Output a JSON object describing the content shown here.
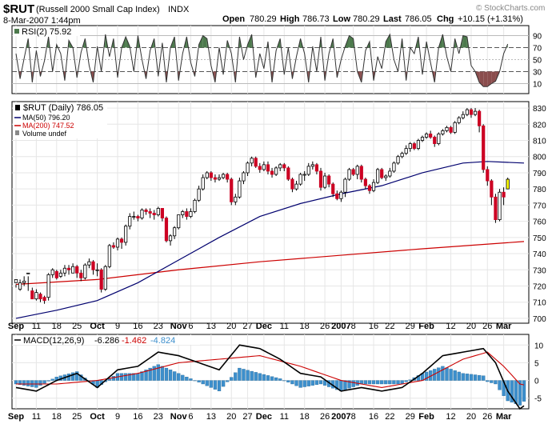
{
  "header": {
    "symbol": "$RUT",
    "name": "(Russell 2000 Small Cap Index)",
    "exchange": "INDX",
    "datetime": "8-Mar-2007 1:44pm",
    "open_label": "Open",
    "open": "780.29",
    "high_label": "High",
    "high": "786.73",
    "low_label": "Low",
    "low": "780.29",
    "last_label": "Last",
    "last": "786.05",
    "chg_label": "Chg",
    "chg": "+10.15 (+1.31%)",
    "copyright": "© StockCharts.com"
  },
  "colors": {
    "up": "#000000",
    "down": "#cc0022",
    "last": "#ffff00",
    "ma50": "#00006e",
    "ma200": "#cc0000",
    "rsi_over": "#4d7a4d",
    "rsi_under": "#8a4d4d",
    "macd": "#000000",
    "signal": "#cc0000",
    "hist": "#3d8fcc"
  },
  "legend": {
    "price": "$RUT (Daily) 786.05",
    "ma50": "MA(50) 796.20",
    "ma200": "MA(200) 747.52",
    "volume": "Volume undef"
  },
  "rsi": {
    "label": "RSI(2) 75.92",
    "ticks": [
      90,
      70,
      50,
      30,
      10
    ]
  },
  "macd_panel": {
    "label": "MACD(12,26,9)",
    "macd": "-6.286",
    "signal": "-1.462",
    "hist": "-4.824",
    "ticks": [
      10,
      5,
      0,
      -5
    ]
  },
  "price_axis": {
    "ticks": [
      830,
      820,
      810,
      800,
      790,
      780,
      770,
      760,
      750,
      740,
      730,
      720,
      710,
      700
    ]
  },
  "date_axis": {
    "labels": [
      {
        "t": "Sep",
        "d": 0,
        "b": true
      },
      {
        "t": "11",
        "d": 5
      },
      {
        "t": "18",
        "d": 10
      },
      {
        "t": "25",
        "d": 15
      },
      {
        "t": "Oct",
        "d": 20,
        "b": true
      },
      {
        "t": "9",
        "d": 25
      },
      {
        "t": "16",
        "d": 30
      },
      {
        "t": "23",
        "d": 35
      },
      {
        "t": "Nov",
        "d": 40,
        "b": true
      },
      {
        "t": "6",
        "d": 43
      },
      {
        "t": "13",
        "d": 48
      },
      {
        "t": "20",
        "d": 53
      },
      {
        "t": "27",
        "d": 57
      },
      {
        "t": "Dec",
        "d": 61,
        "b": true
      },
      {
        "t": "11",
        "d": 66
      },
      {
        "t": "18",
        "d": 71
      },
      {
        "t": "26",
        "d": 76
      },
      {
        "t": "2007",
        "d": 80,
        "b": true
      },
      {
        "t": "8",
        "d": 83
      },
      {
        "t": "16",
        "d": 88
      },
      {
        "t": "22",
        "d": 92
      },
      {
        "t": "29",
        "d": 97
      },
      {
        "t": "Feb",
        "d": 101,
        "b": true
      },
      {
        "t": "12",
        "d": 107
      },
      {
        "t": "20",
        "d": 112
      },
      {
        "t": "26",
        "d": 116
      },
      {
        "t": "Mar",
        "d": 120,
        "b": true
      }
    ]
  },
  "chart_data": {
    "type": "candlestick",
    "title": "$RUT (Russell 2000 Small Cap Index) INDX",
    "price_range": [
      697,
      834
    ],
    "candles": [
      [
        722,
        724,
        721,
        719
      ],
      [
        718,
        722,
        724,
        717
      ],
      [
        722,
        723,
        726,
        720
      ],
      [
        728,
        728,
        726,
        717
      ],
      [
        717,
        712,
        719,
        712
      ],
      [
        712,
        716,
        718,
        711
      ],
      [
        715,
        712,
        716,
        710
      ],
      [
        713,
        711,
        714,
        709
      ],
      [
        713,
        727,
        728,
        711
      ],
      [
        727,
        730,
        731,
        725
      ],
      [
        729,
        725,
        730,
        724
      ],
      [
        726,
        728,
        730,
        725
      ],
      [
        728,
        731,
        733,
        726
      ],
      [
        731,
        730,
        733,
        727
      ],
      [
        728,
        732,
        734,
        728
      ],
      [
        732,
        728,
        733,
        725
      ],
      [
        728,
        725,
        730,
        723
      ],
      [
        725,
        733,
        734,
        724
      ],
      [
        733,
        735,
        737,
        731
      ],
      [
        735,
        730,
        736,
        727
      ],
      [
        730,
        730,
        734,
        726
      ],
      [
        730,
        718,
        731,
        716
      ],
      [
        718,
        732,
        733,
        717
      ],
      [
        732,
        745,
        746,
        731
      ],
      [
        745,
        744,
        747,
        743
      ],
      [
        744,
        749,
        750,
        742
      ],
      [
        749,
        747,
        750,
        743
      ],
      [
        747,
        757,
        758,
        745
      ],
      [
        757,
        763,
        765,
        755
      ],
      [
        763,
        763,
        766,
        761
      ],
      [
        763,
        762,
        764,
        760
      ],
      [
        762,
        767,
        768,
        761
      ],
      [
        767,
        766,
        768,
        764
      ],
      [
        766,
        765,
        768,
        762
      ],
      [
        765,
        764,
        767,
        761
      ],
      [
        764,
        768,
        769,
        763
      ],
      [
        768,
        762,
        768,
        760
      ],
      [
        762,
        748,
        763,
        747
      ],
      [
        748,
        751,
        752,
        745
      ],
      [
        751,
        756,
        757,
        749
      ],
      [
        756,
        764,
        764,
        755
      ],
      [
        764,
        766,
        767,
        762
      ],
      [
        766,
        763,
        768,
        761
      ],
      [
        763,
        766,
        768,
        762
      ],
      [
        766,
        773,
        774,
        765
      ],
      [
        773,
        780,
        782,
        772
      ],
      [
        780,
        787,
        789,
        779
      ],
      [
        787,
        790,
        791,
        786
      ],
      [
        790,
        787,
        791,
        785
      ],
      [
        787,
        786,
        789,
        784
      ],
      [
        786,
        787,
        789,
        785
      ],
      [
        787,
        789,
        790,
        786
      ],
      [
        789,
        786,
        790,
        784
      ],
      [
        786,
        772,
        787,
        770
      ],
      [
        772,
        775,
        777,
        770
      ],
      [
        775,
        785,
        787,
        774
      ],
      [
        785,
        790,
        791,
        783
      ],
      [
        790,
        796,
        797,
        788
      ],
      [
        796,
        799,
        800,
        794
      ],
      [
        799,
        794,
        800,
        793
      ],
      [
        794,
        792,
        796,
        790
      ],
      [
        792,
        795,
        797,
        791
      ],
      [
        795,
        791,
        797,
        789
      ],
      [
        791,
        789,
        793,
        787
      ],
      [
        789,
        793,
        794,
        788
      ],
      [
        793,
        795,
        796,
        791
      ],
      [
        795,
        793,
        796,
        791
      ],
      [
        793,
        786,
        794,
        785
      ],
      [
        786,
        780,
        787,
        778
      ],
      [
        780,
        783,
        785,
        779
      ],
      [
        783,
        789,
        790,
        782
      ],
      [
        789,
        789,
        791,
        785
      ],
      [
        789,
        794,
        796,
        788
      ],
      [
        794,
        795,
        797,
        792
      ],
      [
        795,
        791,
        796,
        789
      ],
      [
        791,
        781,
        793,
        779
      ],
      [
        781,
        788,
        790,
        780
      ],
      [
        788,
        783,
        789,
        781
      ],
      [
        783,
        777,
        784,
        775
      ],
      [
        777,
        774,
        779,
        773
      ],
      [
        774,
        778,
        779,
        772
      ],
      [
        778,
        786,
        787,
        775
      ],
      [
        786,
        792,
        793,
        785
      ],
      [
        792,
        789,
        793,
        788
      ],
      [
        789,
        794,
        795,
        786
      ],
      [
        794,
        786,
        795,
        784
      ],
      [
        786,
        782,
        787,
        780
      ],
      [
        782,
        779,
        783,
        777
      ],
      [
        779,
        784,
        786,
        778
      ],
      [
        784,
        792,
        793,
        783
      ],
      [
        792,
        787,
        793,
        786
      ],
      [
        787,
        788,
        789,
        785
      ],
      [
        788,
        791,
        793,
        787
      ],
      [
        791,
        796,
        797,
        790
      ],
      [
        796,
        800,
        801,
        795
      ],
      [
        800,
        802,
        803,
        799
      ],
      [
        802,
        805,
        807,
        801
      ],
      [
        805,
        808,
        809,
        803
      ],
      [
        808,
        805,
        809,
        804
      ],
      [
        805,
        810,
        811,
        804
      ],
      [
        810,
        812,
        813,
        809
      ],
      [
        812,
        814,
        815,
        811
      ],
      [
        814,
        812,
        816,
        811
      ],
      [
        812,
        808,
        813,
        806
      ],
      [
        808,
        814,
        815,
        807
      ],
      [
        814,
        816,
        817,
        813
      ],
      [
        816,
        818,
        819,
        815
      ],
      [
        818,
        815,
        819,
        814
      ],
      [
        815,
        821,
        822,
        814
      ],
      [
        821,
        824,
        825,
        820
      ],
      [
        824,
        826,
        828,
        823
      ],
      [
        826,
        829,
        830,
        825
      ],
      [
        829,
        826,
        830,
        824
      ],
      [
        826,
        828,
        830,
        825
      ],
      [
        828,
        819,
        829,
        815
      ],
      [
        819,
        792,
        820,
        790
      ],
      [
        792,
        785,
        794,
        782
      ],
      [
        785,
        775,
        786,
        770
      ],
      [
        775,
        761,
        777,
        759
      ],
      [
        761,
        778,
        780,
        760
      ],
      [
        778,
        775,
        781,
        770
      ],
      [
        780,
        786,
        787,
        780
      ]
    ],
    "ma50": [
      [
        0,
        700
      ],
      [
        10,
        705
      ],
      [
        20,
        711
      ],
      [
        30,
        722
      ],
      [
        40,
        736
      ],
      [
        50,
        750
      ],
      [
        60,
        763
      ],
      [
        70,
        771
      ],
      [
        80,
        777
      ],
      [
        90,
        782
      ],
      [
        100,
        790
      ],
      [
        110,
        796
      ],
      [
        116,
        797
      ],
      [
        125,
        796
      ]
    ],
    "ma200": [
      [
        0,
        721
      ],
      [
        20,
        724
      ],
      [
        40,
        730
      ],
      [
        60,
        735
      ],
      [
        80,
        739
      ],
      [
        100,
        743
      ],
      [
        125,
        747.5
      ]
    ],
    "rsi": [
      60,
      18,
      52,
      85,
      12,
      65,
      22,
      48,
      88,
      30,
      75,
      60,
      15,
      82,
      70,
      20,
      62,
      85,
      40,
      12,
      72,
      30,
      92,
      55,
      85,
      20,
      70,
      88,
      72,
      30,
      90,
      50,
      18,
      65,
      85,
      22,
      78,
      12,
      70,
      88,
      15,
      60,
      88,
      45,
      22,
      75,
      90,
      85,
      40,
      12,
      70,
      25,
      82,
      60,
      12,
      88,
      50,
      75,
      92,
      20,
      60,
      35,
      80,
      12,
      65,
      85,
      25,
      70,
      18,
      55,
      85,
      60,
      12,
      72,
      30,
      88,
      15,
      60,
      85,
      20,
      50,
      72,
      90,
      85,
      30,
      12,
      65,
      80,
      15,
      55,
      35,
      80,
      92,
      50,
      30,
      85,
      15,
      70,
      60,
      88,
      25,
      80,
      45,
      12,
      70,
      92,
      55,
      30,
      85,
      60,
      90,
      88,
      40,
      30,
      12,
      5,
      5,
      10,
      14,
      30,
      60,
      75.92
    ],
    "macd": [
      [
        0,
        -2
      ],
      [
        5,
        -3
      ],
      [
        10,
        0
      ],
      [
        15,
        2
      ],
      [
        20,
        -2
      ],
      [
        25,
        3
      ],
      [
        30,
        4
      ],
      [
        35,
        8
      ],
      [
        40,
        7
      ],
      [
        45,
        5
      ],
      [
        50,
        3
      ],
      [
        55,
        10
      ],
      [
        60,
        9
      ],
      [
        65,
        6
      ],
      [
        70,
        2
      ],
      [
        75,
        1
      ],
      [
        80,
        -3
      ],
      [
        85,
        -2
      ],
      [
        90,
        -3
      ],
      [
        95,
        -2
      ],
      [
        100,
        2
      ],
      [
        105,
        7
      ],
      [
        110,
        8
      ],
      [
        115,
        9
      ],
      [
        118,
        5
      ],
      [
        121,
        -3
      ],
      [
        124,
        -8
      ],
      [
        126,
        -6.3
      ]
    ],
    "signal": [
      [
        0,
        -1
      ],
      [
        10,
        -1
      ],
      [
        20,
        0
      ],
      [
        30,
        2
      ],
      [
        40,
        5
      ],
      [
        50,
        6
      ],
      [
        60,
        7
      ],
      [
        70,
        4
      ],
      [
        80,
        0
      ],
      [
        90,
        -2
      ],
      [
        100,
        0
      ],
      [
        110,
        6
      ],
      [
        116,
        8
      ],
      [
        120,
        4
      ],
      [
        124,
        -1
      ],
      [
        126,
        -1.5
      ]
    ]
  }
}
